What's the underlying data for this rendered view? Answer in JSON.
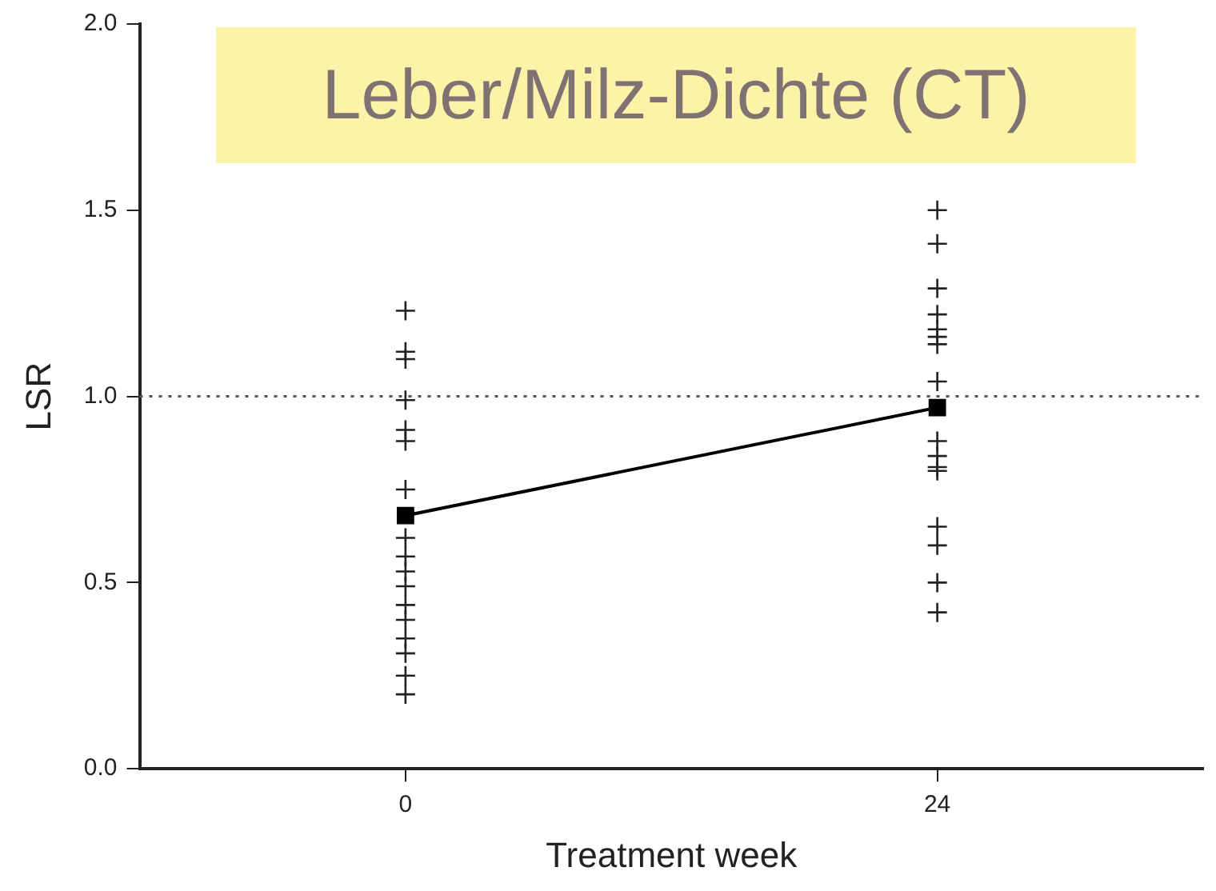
{
  "chart_data": {
    "type": "scatter",
    "title": "Leber/Milz-Dichte (CT)",
    "xlabel": "Treatment week",
    "ylabel": "LSR",
    "categories": [
      "0",
      "24"
    ],
    "ylim": [
      0,
      2
    ],
    "yticks": [
      {
        "value": 0,
        "label": "0.0"
      },
      {
        "value": 0.5,
        "label": "0.5"
      },
      {
        "value": 1,
        "label": "1.0"
      },
      {
        "value": 1.5,
        "label": "1.5"
      },
      {
        "value": 2,
        "label": "2.0"
      }
    ],
    "grid": false,
    "legend": false,
    "ref_lines": [
      {
        "axis": "y",
        "value": 1,
        "line_style": "dotted",
        "color": "#555555"
      }
    ],
    "series": [
      {
        "type": "scatter",
        "marker": "cross",
        "color": "#222222",
        "x": [
          "0",
          "0",
          "0",
          "0",
          "0",
          "0",
          "0",
          "0",
          "0",
          "0",
          "0",
          "0",
          "0",
          "0",
          "0",
          "0",
          "0",
          "0"
        ],
        "values": [
          1.23,
          1.12,
          1.1,
          0.99,
          0.91,
          0.88,
          0.75,
          null,
          0.62,
          0.57,
          0.53,
          0.49,
          0.44,
          0.4,
          0.35,
          0.31,
          0.25,
          0.2
        ]
      },
      {
        "type": "scatter",
        "marker": "cross",
        "color": "#222222",
        "x": [
          "24",
          "24",
          "24",
          "24",
          "24",
          "24",
          "24",
          "24",
          "24",
          "24",
          "24",
          "24",
          "24",
          "24",
          "24",
          "24"
        ],
        "values": [
          1.5,
          1.41,
          1.29,
          1.22,
          1.18,
          1.16,
          1.14,
          1.04,
          0.88,
          0.84,
          0.81,
          0.8,
          0.65,
          0.6,
          0.5,
          0.42
        ]
      },
      {
        "type": "line",
        "marker": "square",
        "line_style": "solid",
        "color": "#000000",
        "x": [
          "0",
          "24"
        ],
        "values": [
          0.68,
          0.97
        ]
      }
    ]
  }
}
